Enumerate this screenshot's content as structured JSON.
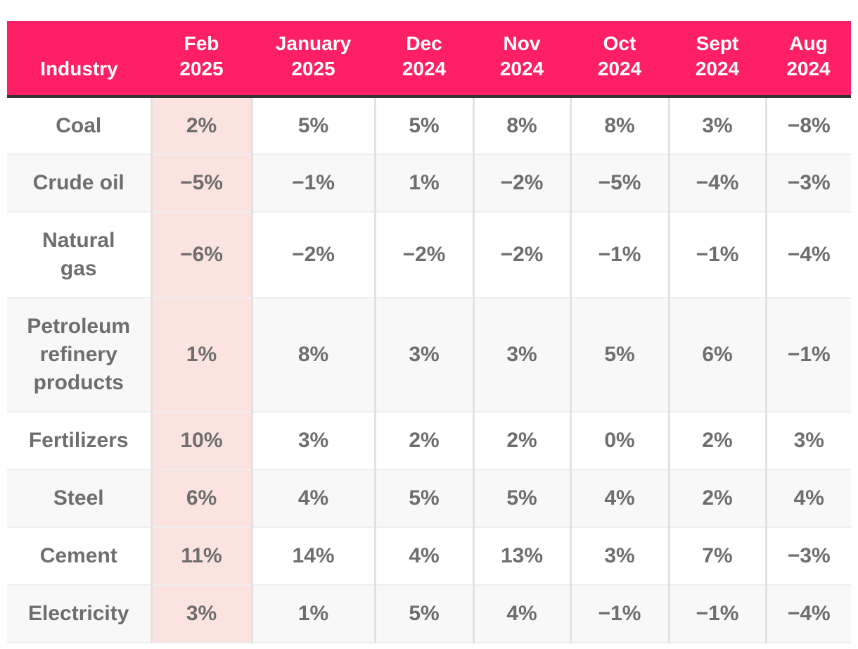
{
  "chart_data": {
    "type": "table",
    "header": {
      "industry": "Industry",
      "months": [
        [
          "Feb",
          "2025"
        ],
        [
          "January",
          "2025"
        ],
        [
          "Dec",
          "2024"
        ],
        [
          "Nov",
          "2024"
        ],
        [
          "Oct",
          "2024"
        ],
        [
          "Sept",
          "2024"
        ],
        [
          "Aug",
          "2024"
        ]
      ]
    },
    "rows": [
      {
        "industry": "Coal",
        "values": [
          "2%",
          "5%",
          "5%",
          "8%",
          "8%",
          "3%",
          "−8%"
        ]
      },
      {
        "industry": "Crude oil",
        "values": [
          "−5%",
          "−1%",
          "1%",
          "−2%",
          "−5%",
          "−4%",
          "−3%"
        ]
      },
      {
        "industry": "Natural gas",
        "values": [
          "−6%",
          "−2%",
          "−2%",
          "−2%",
          "−1%",
          "−1%",
          "−4%"
        ]
      },
      {
        "industry": "Petroleum refinery products",
        "values": [
          "1%",
          "8%",
          "3%",
          "3%",
          "5%",
          "6%",
          "−1%"
        ]
      },
      {
        "industry": "Fertilizers",
        "values": [
          "10%",
          "3%",
          "2%",
          "2%",
          "0%",
          "2%",
          "3%"
        ]
      },
      {
        "industry": "Steel",
        "values": [
          "6%",
          "4%",
          "5%",
          "5%",
          "4%",
          "2%",
          "4%"
        ]
      },
      {
        "industry": "Cement",
        "values": [
          "11%",
          "14%",
          "4%",
          "13%",
          "3%",
          "7%",
          "−3%"
        ]
      },
      {
        "industry": "Electricity",
        "values": [
          "3%",
          "1%",
          "5%",
          "4%",
          "−1%",
          "−1%",
          "−4%"
        ]
      }
    ],
    "highlighted_column": "Feb 2025"
  },
  "colors": {
    "header_bg": "#ff1f66",
    "header_text": "#ffffff",
    "highlight_column_bg": "#fbe3df",
    "cell_text": "#6e6e6e",
    "stripe_bg": "#f8f8f8"
  }
}
